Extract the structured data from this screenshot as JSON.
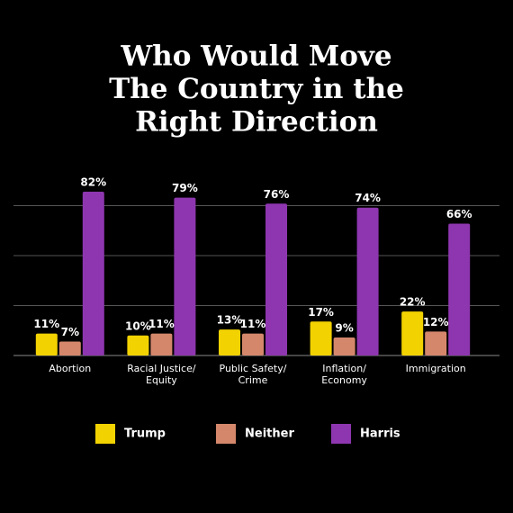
{
  "chart_data": {
    "type": "bar",
    "title": [
      "Who Would Move",
      "The Country in the",
      "Right Direction"
    ],
    "categories": [
      [
        "Abortion"
      ],
      [
        "Racial Justice/",
        "Equity"
      ],
      [
        "Public Safety/",
        "Crime"
      ],
      [
        "Inflation/",
        "Economy"
      ],
      [
        "Immigration"
      ]
    ],
    "series": [
      {
        "name": "Trump",
        "color": "#f2d200",
        "values": [
          11,
          10,
          13,
          17,
          22
        ],
        "value_labels": [
          "11%",
          "10%",
          "13%",
          "17%",
          "22%"
        ]
      },
      {
        "name": "Neither",
        "color": "#d4876b",
        "values": [
          7,
          11,
          11,
          9,
          12
        ],
        "value_labels": [
          "7%",
          "11%",
          "11%",
          "9%",
          "12%"
        ]
      },
      {
        "name": "Harris",
        "color": "#8e36b0",
        "values": [
          82,
          79,
          76,
          74,
          66
        ],
        "value_labels": [
          "82%",
          "79%",
          "76%",
          "74%",
          "66%"
        ]
      }
    ],
    "ylim": [
      0,
      100
    ],
    "yticks": [
      0,
      25,
      50,
      75
    ],
    "grid": true
  }
}
